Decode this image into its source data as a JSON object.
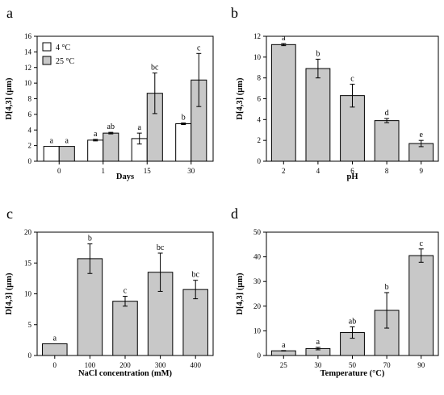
{
  "chart_data": [
    {
      "panel": "a",
      "type": "bar",
      "xlabel": "Days",
      "ylabel": "D[4,3] (µm)",
      "ylim": [
        0,
        16
      ],
      "yticks": [
        0,
        2,
        4,
        6,
        8,
        10,
        12,
        14,
        16
      ],
      "categories": [
        "0",
        "1",
        "15",
        "30"
      ],
      "legend_position": "top-left",
      "series": [
        {
          "name": "4 °C",
          "color": "#ffffff",
          "values": [
            1.9,
            2.7,
            2.9,
            4.8
          ],
          "errors": [
            0.0,
            0.1,
            0.7,
            0.1
          ],
          "labels": [
            "a",
            "a",
            "a",
            "b"
          ]
        },
        {
          "name": "25 °C",
          "color": "#c8c8c8",
          "values": [
            1.9,
            3.6,
            8.7,
            10.4
          ],
          "errors": [
            0.0,
            0.1,
            2.6,
            3.4
          ],
          "labels": [
            "a",
            "ab",
            "bc",
            "c"
          ]
        }
      ]
    },
    {
      "panel": "b",
      "type": "bar",
      "xlabel": "pH",
      "ylabel": "D[4,3] (µm)",
      "ylim": [
        0,
        12
      ],
      "yticks": [
        0,
        2,
        4,
        6,
        8,
        10,
        12
      ],
      "categories": [
        "2",
        "4",
        "6",
        "8",
        "9"
      ],
      "series": [
        {
          "color": "#c8c8c8",
          "values": [
            11.2,
            8.9,
            6.3,
            3.9,
            1.7
          ],
          "errors": [
            0.1,
            0.9,
            1.1,
            0.2,
            0.3
          ],
          "labels": [
            "a",
            "b",
            "c",
            "d",
            "e"
          ]
        }
      ]
    },
    {
      "panel": "c",
      "type": "bar",
      "xlabel": "NaCl concentration (mM)",
      "ylabel": "D[4,3] (µm)",
      "ylim": [
        0,
        20
      ],
      "yticks": [
        0,
        5,
        10,
        15,
        20
      ],
      "categories": [
        "0",
        "100",
        "200",
        "300",
        "400"
      ],
      "series": [
        {
          "color": "#c8c8c8",
          "values": [
            1.9,
            15.7,
            8.8,
            13.5,
            10.7
          ],
          "errors": [
            0.0,
            2.4,
            0.8,
            3.1,
            1.5
          ],
          "labels": [
            "a",
            "b",
            "c",
            "bc",
            "bc"
          ]
        }
      ]
    },
    {
      "panel": "d",
      "type": "bar",
      "xlabel": "Temperature (°C)",
      "ylabel": "D[4,3] (µm)",
      "ylim": [
        0,
        50
      ],
      "yticks": [
        0,
        10,
        20,
        30,
        40,
        50
      ],
      "categories": [
        "25",
        "30",
        "50",
        "70",
        "90"
      ],
      "series": [
        {
          "color": "#c8c8c8",
          "values": [
            1.9,
            2.8,
            9.3,
            18.3,
            40.5
          ],
          "errors": [
            0.1,
            0.5,
            2.3,
            7.2,
            2.7
          ],
          "labels": [
            "a",
            "a",
            "ab",
            "b",
            "c"
          ]
        }
      ]
    }
  ]
}
